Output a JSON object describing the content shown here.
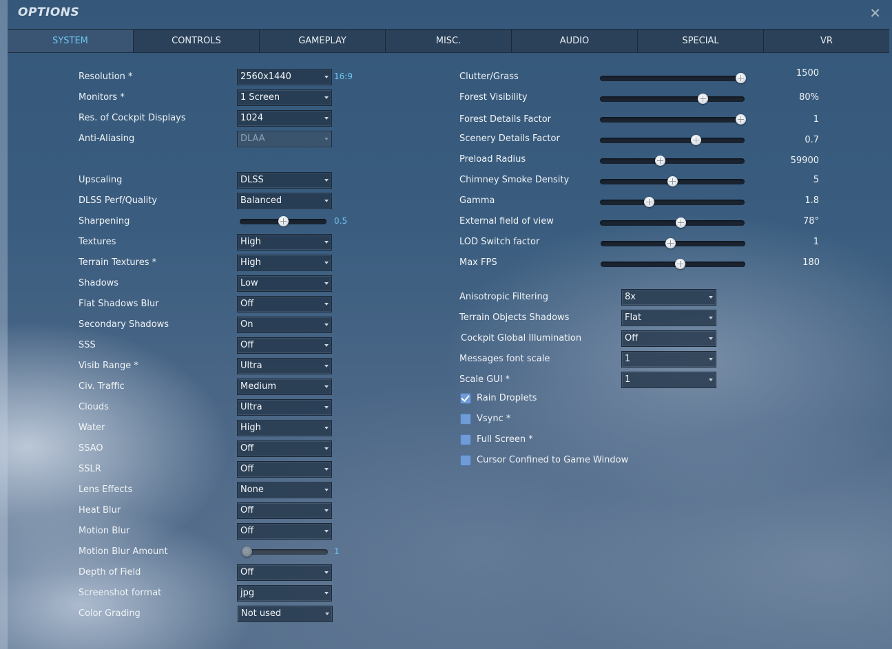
{
  "title": "OPTIONS",
  "tabs": [
    {
      "label": "SYSTEM",
      "active": true
    },
    {
      "label": "CONTROLS",
      "active": false
    },
    {
      "label": "GAMEPLAY",
      "active": false
    },
    {
      "label": "MISC.",
      "active": false
    },
    {
      "label": "AUDIO",
      "active": false
    },
    {
      "label": "SPECIAL",
      "active": false
    },
    {
      "label": "VR",
      "active": false
    }
  ],
  "colors": {
    "active_tab_text": "#6ec6f0",
    "checkbox": "#6f9bd6"
  },
  "left": {
    "resolution": {
      "label": "Resolution *",
      "value": "2560x1440",
      "note": "16:9"
    },
    "monitors": {
      "label": "Monitors *",
      "value": "1 Screen"
    },
    "cockpit_res": {
      "label": "Res. of Cockpit Displays",
      "value": "1024"
    },
    "anti_aliasing": {
      "label": "Anti-Aliasing",
      "value": "DLAA",
      "disabled": true
    },
    "upscaling": {
      "label": "Upscaling",
      "value": "DLSS"
    },
    "dlss_quality": {
      "label": "DLSS Perf/Quality",
      "value": "Balanced"
    },
    "sharpening": {
      "label": "Sharpening",
      "value": "0.5",
      "fraction": 0.5
    },
    "textures": {
      "label": "Textures",
      "value": "High"
    },
    "terrain_textures": {
      "label": "Terrain Textures *",
      "value": "High"
    },
    "shadows": {
      "label": "Shadows",
      "value": "Low"
    },
    "flat_shadows_blur": {
      "label": "Flat Shadows Blur",
      "value": "Off"
    },
    "secondary_shadows": {
      "label": "Secondary Shadows",
      "value": "On"
    },
    "sss": {
      "label": "SSS",
      "value": "Off"
    },
    "visib_range": {
      "label": "Visib Range *",
      "value": "Ultra"
    },
    "civ_traffic": {
      "label": "Civ. Traffic",
      "value": "Medium"
    },
    "clouds": {
      "label": "Clouds",
      "value": "Ultra"
    },
    "water": {
      "label": "Water",
      "value": "High"
    },
    "ssao": {
      "label": "SSAO",
      "value": "Off"
    },
    "sslr": {
      "label": "SSLR",
      "value": "Off"
    },
    "lens_effects": {
      "label": "Lens Effects",
      "value": "None"
    },
    "heat_blur": {
      "label": "Heat Blur",
      "value": "Off"
    },
    "motion_blur": {
      "label": "Motion Blur",
      "value": "Off"
    },
    "motion_blur_amount": {
      "label": "Motion Blur Amount",
      "value": "1",
      "fraction": 0.0,
      "disabled": true
    },
    "depth_of_field": {
      "label": "Depth of Field",
      "value": "Off"
    },
    "screenshot_format": {
      "label": "Screenshot format",
      "value": "jpg"
    },
    "color_grading": {
      "label": "Color Grading",
      "value": "Not used"
    }
  },
  "right": {
    "clutter_grass": {
      "label": "Clutter/Grass",
      "value": "1500",
      "fraction": 1.0
    },
    "forest_visibility": {
      "label": "Forest Visibility",
      "value": "80%",
      "fraction": 0.72
    },
    "forest_details": {
      "label": "Forest Details Factor",
      "value": "1",
      "fraction": 1.0
    },
    "scenery_details": {
      "label": "Scenery Details Factor",
      "value": "0.7",
      "fraction": 0.67
    },
    "preload_radius": {
      "label": "Preload Radius",
      "value": "59900",
      "fraction": 0.41
    },
    "chimney_smoke": {
      "label": "Chimney Smoke Density",
      "value": "5",
      "fraction": 0.5
    },
    "gamma": {
      "label": "Gamma",
      "value": "1.8",
      "fraction": 0.33
    },
    "external_fov": {
      "label": "External field of view",
      "value": "78°",
      "fraction": 0.56
    },
    "lod_switch": {
      "label": "LOD Switch factor",
      "value": "1",
      "fraction": 0.48
    },
    "max_fps": {
      "label": "Max FPS",
      "value": "180",
      "fraction": 0.55
    },
    "anisotropic": {
      "label": "Anisotropic Filtering",
      "value": "8x"
    },
    "terrain_obj_shadows": {
      "label": "Terrain Objects Shadows",
      "value": "Flat"
    },
    "cockpit_gi": {
      "label": "Cockpit Global Illumination",
      "value": "Off"
    },
    "msg_font_scale": {
      "label": "Messages font scale",
      "value": "1"
    },
    "scale_gui": {
      "label": "Scale GUI *",
      "value": "1"
    },
    "rain_droplets": {
      "label": "Rain Droplets",
      "checked": true
    },
    "vsync": {
      "label": "Vsync *",
      "checked": false
    },
    "full_screen": {
      "label": "Full Screen *",
      "checked": false
    },
    "cursor_confined": {
      "label": "Cursor Confined to Game Window",
      "checked": false
    }
  }
}
